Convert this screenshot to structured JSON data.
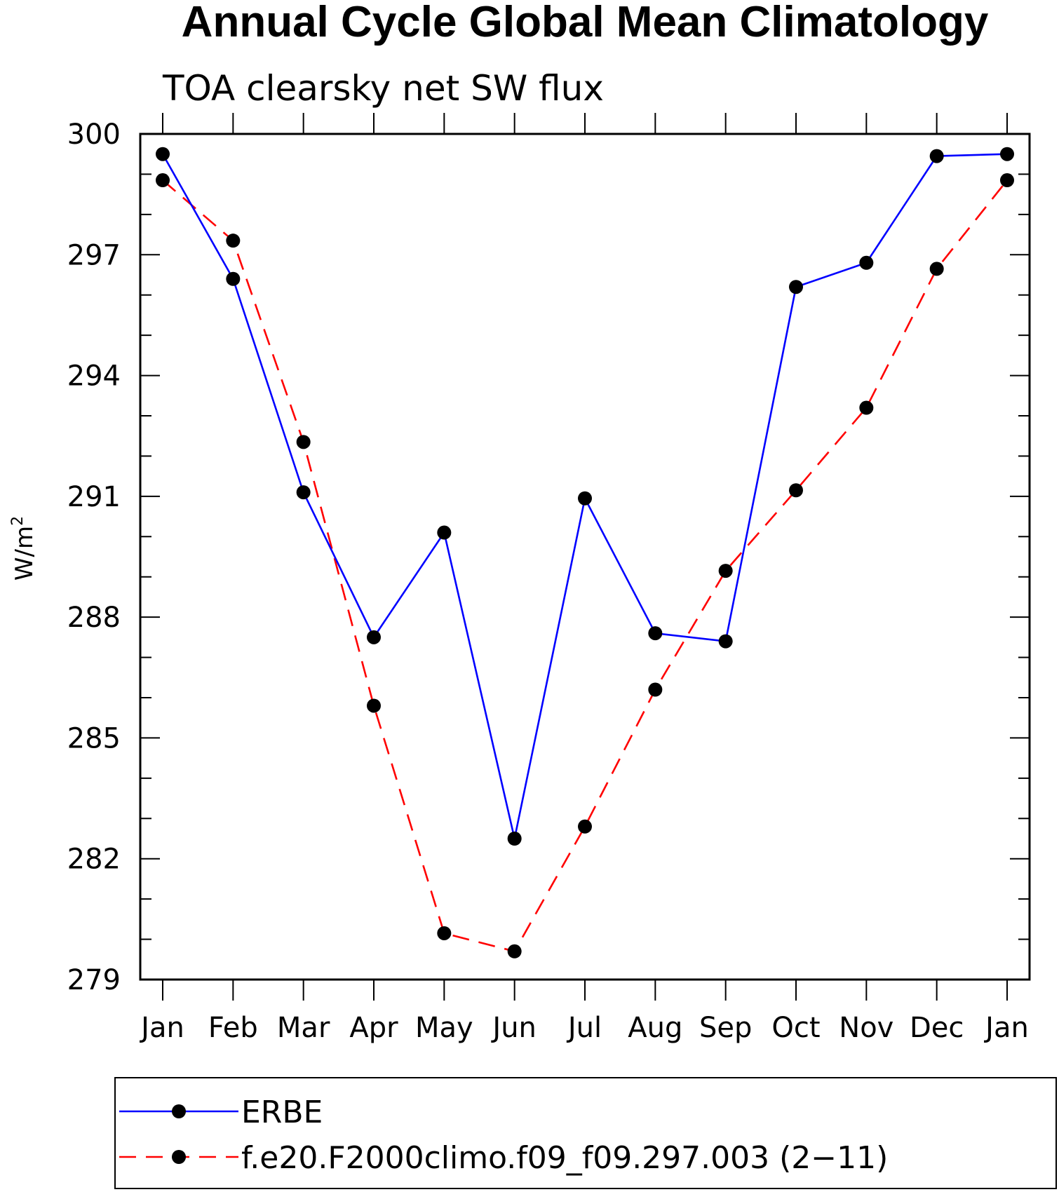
{
  "chart_data": {
    "type": "line",
    "title": "Annual Cycle Global Mean Climatology",
    "subtitle": "TOA clearsky net SW flux",
    "xlabel": "",
    "ylabel": "W/m",
    "ylabel_superscript": "2",
    "categories": [
      "Jan",
      "Feb",
      "Mar",
      "Apr",
      "May",
      "Jun",
      "Jul",
      "Aug",
      "Sep",
      "Oct",
      "Nov",
      "Dec",
      "Jan"
    ],
    "ylim": [
      279,
      300
    ],
    "yticks": [
      "279",
      "282",
      "285",
      "288",
      "291",
      "294",
      "297",
      "300"
    ],
    "grid": false,
    "legend_position": "bottom",
    "series": [
      {
        "name": "ERBE",
        "color": "#0000ff",
        "dash": "solid",
        "marker": "filled-circle",
        "values": [
          299.5,
          296.4,
          291.1,
          287.5,
          290.1,
          282.5,
          290.95,
          287.6,
          287.4,
          296.2,
          296.8,
          299.45,
          299.5
        ]
      },
      {
        "name": "f.e20.F2000climo.f09_f09.297.003 (2−11)",
        "color": "#ff0000",
        "dash": "dashed",
        "marker": "filled-circle",
        "values": [
          298.85,
          297.35,
          292.35,
          285.8,
          280.15,
          279.7,
          282.8,
          286.2,
          289.15,
          291.15,
          293.2,
          296.65,
          298.85
        ]
      }
    ]
  }
}
